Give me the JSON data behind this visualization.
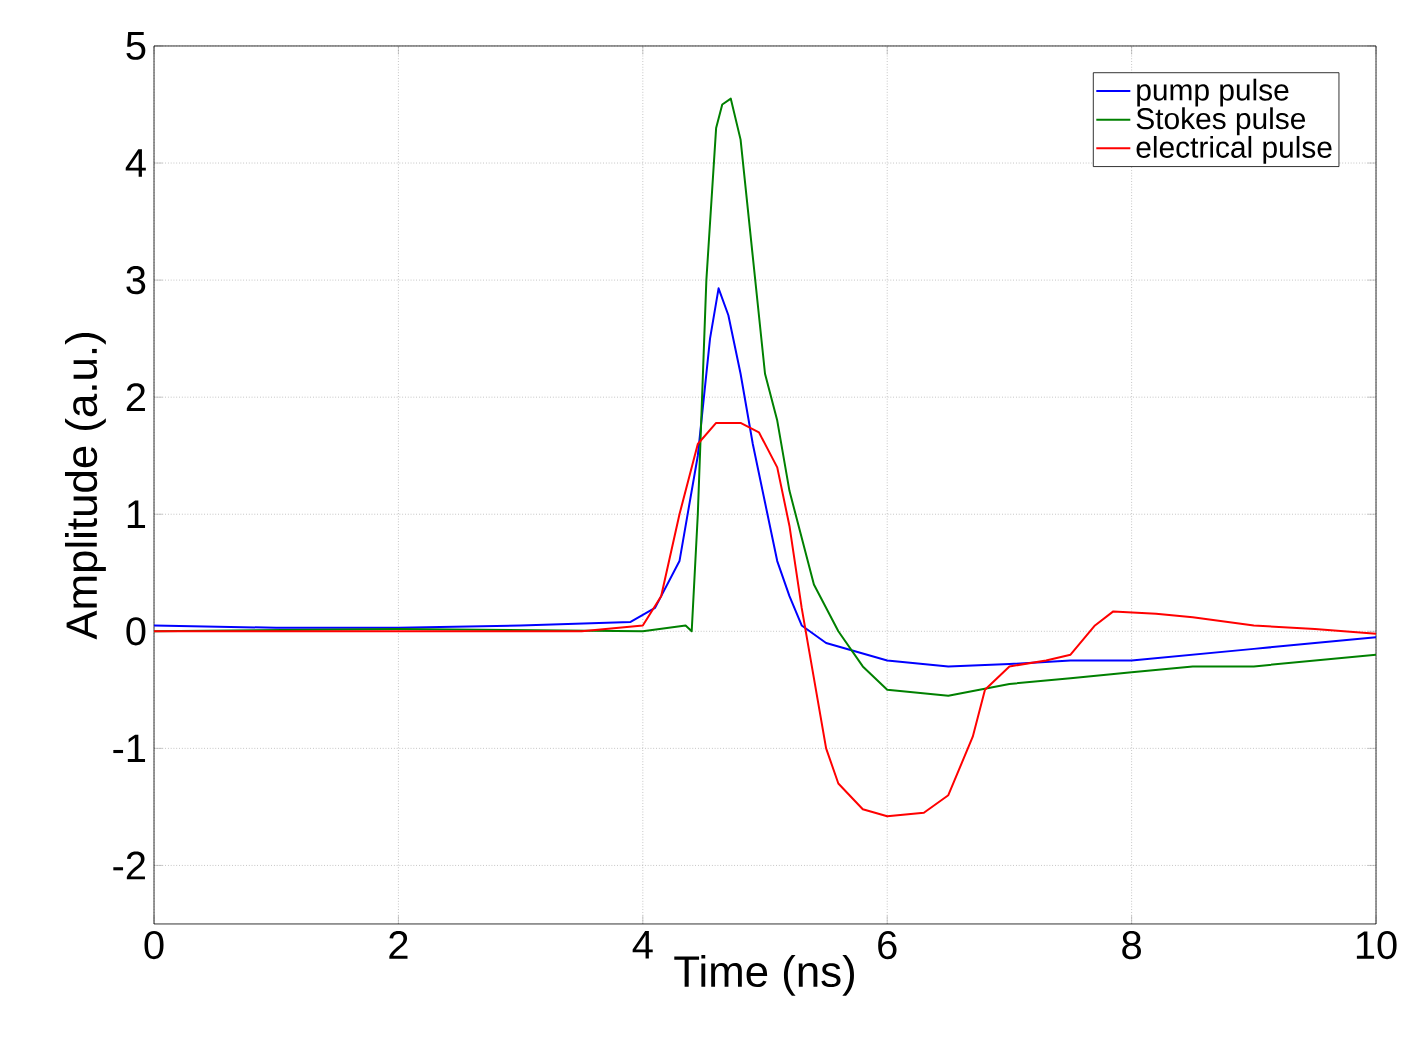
{
  "chart_data": {
    "type": "line",
    "xlabel": "Time (ns)",
    "ylabel": "Amplitude (a.u.)",
    "xlim": [
      0,
      10
    ],
    "ylim": [
      -2.5,
      5
    ],
    "xticks": [
      0,
      2,
      4,
      6,
      8,
      10
    ],
    "yticks": [
      -2,
      -1,
      0,
      1,
      2,
      3,
      4,
      5
    ],
    "grid": true,
    "legend": "top right",
    "line_style": "solid",
    "marker": "none",
    "series": [
      {
        "name": "pump pulse",
        "color": "#0000ff",
        "x": [
          0,
          1,
          2,
          3,
          3.9,
          4.1,
          4.3,
          4.45,
          4.55,
          4.62,
          4.7,
          4.8,
          4.9,
          5.0,
          5.1,
          5.2,
          5.3,
          5.5,
          6,
          6.5,
          7,
          7.5,
          8,
          8.5,
          9,
          9.5,
          10
        ],
        "values": [
          0.05,
          0.03,
          0.03,
          0.05,
          0.08,
          0.2,
          0.6,
          1.5,
          2.5,
          2.93,
          2.7,
          2.2,
          1.6,
          1.1,
          0.6,
          0.3,
          0.05,
          -0.1,
          -0.25,
          -0.3,
          -0.28,
          -0.25,
          -0.25,
          -0.2,
          -0.15,
          -0.1,
          -0.05
        ]
      },
      {
        "name": "Stokes pulse",
        "color": "#008000",
        "x": [
          0,
          2,
          4,
          4.35,
          4.4,
          4.45,
          4.52,
          4.6,
          4.65,
          4.72,
          4.8,
          4.9,
          5.0,
          5.1,
          5.2,
          5.4,
          5.6,
          5.8,
          6.0,
          6.5,
          7,
          7.5,
          8,
          8.5,
          9,
          9.5,
          10
        ],
        "values": [
          0,
          0.02,
          0,
          0.05,
          0,
          1.0,
          3.0,
          4.3,
          4.5,
          4.55,
          4.2,
          3.2,
          2.2,
          1.8,
          1.2,
          0.4,
          0,
          -0.3,
          -0.5,
          -0.55,
          -0.45,
          -0.4,
          -0.35,
          -0.3,
          -0.3,
          -0.25,
          -0.2
        ]
      },
      {
        "name": "electrical pulse",
        "color": "#ff0000",
        "x": [
          0,
          2,
          3.5,
          4.0,
          4.15,
          4.3,
          4.45,
          4.6,
          4.8,
          4.95,
          5.1,
          5.2,
          5.3,
          5.4,
          5.5,
          5.6,
          5.8,
          6.0,
          6.3,
          6.5,
          6.7,
          6.8,
          7.0,
          7.3,
          7.5,
          7.7,
          7.85,
          8.2,
          8.5,
          9,
          9.5,
          10
        ],
        "values": [
          0,
          0,
          0,
          0.05,
          0.3,
          1.0,
          1.6,
          1.78,
          1.78,
          1.7,
          1.4,
          0.9,
          0.2,
          -0.4,
          -1.0,
          -1.3,
          -1.52,
          -1.58,
          -1.55,
          -1.4,
          -0.9,
          -0.5,
          -0.3,
          -0.25,
          -0.2,
          0.05,
          0.17,
          0.15,
          0.12,
          0.05,
          0.02,
          -0.02
        ]
      }
    ]
  }
}
